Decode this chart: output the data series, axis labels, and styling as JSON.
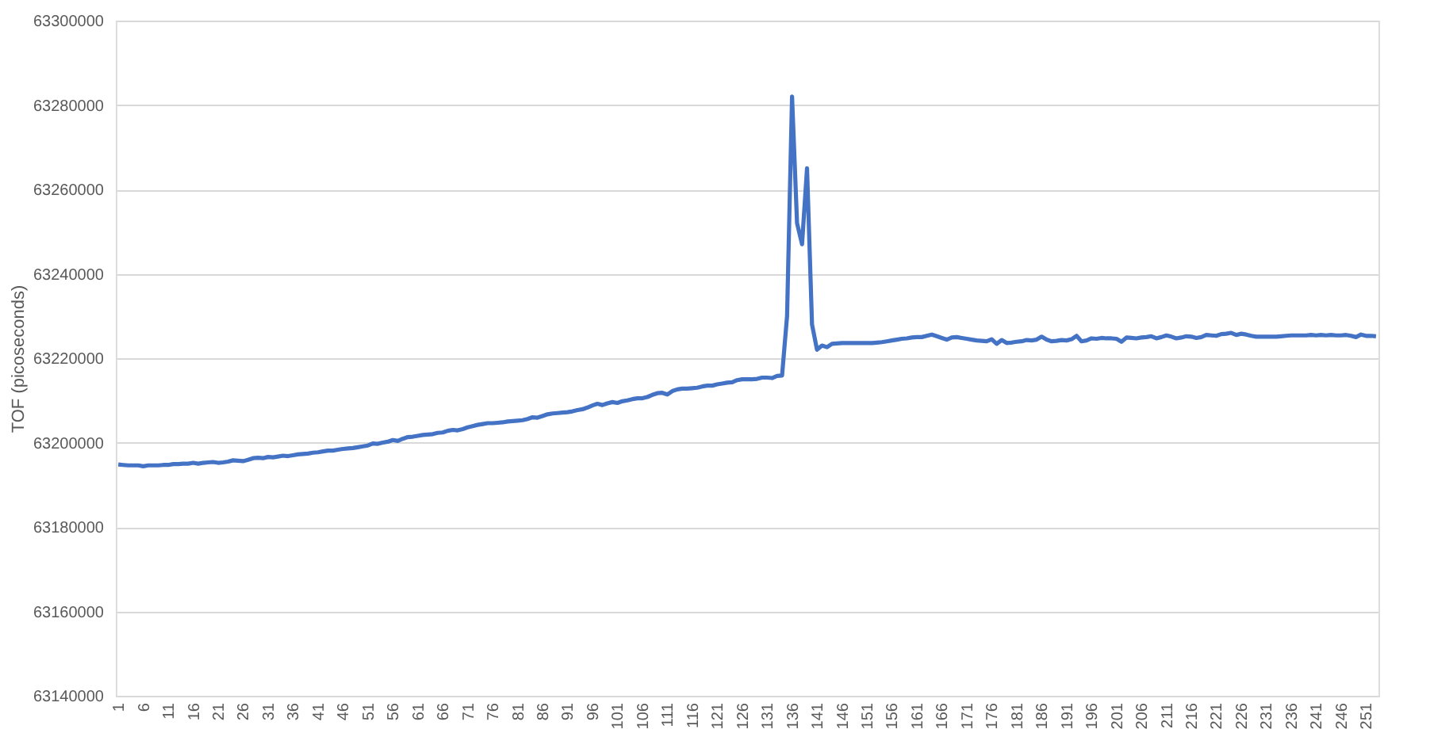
{
  "chart_data": {
    "type": "line",
    "ylabel": "TOF (picoseconds)",
    "categories": [
      "1",
      null,
      null,
      null,
      null,
      "6",
      null,
      null,
      null,
      null,
      "11",
      null,
      null,
      null,
      null,
      "16",
      null,
      null,
      null,
      null,
      "21",
      null,
      null,
      null,
      null,
      "26",
      null,
      null,
      null,
      null,
      "31",
      null,
      null,
      null,
      null,
      "36",
      null,
      null,
      null,
      null,
      "41",
      null,
      null,
      null,
      null,
      "46",
      null,
      null,
      null,
      null,
      "51",
      null,
      null,
      null,
      null,
      "56",
      null,
      null,
      null,
      null,
      "61",
      null,
      null,
      null,
      null,
      "66",
      null,
      null,
      null,
      null,
      "71",
      null,
      null,
      null,
      null,
      "76",
      null,
      null,
      null,
      null,
      "81",
      null,
      null,
      null,
      null,
      "86",
      null,
      null,
      null,
      null,
      "91",
      null,
      null,
      null,
      null,
      "96",
      null,
      null,
      null,
      null,
      "101",
      null,
      null,
      null,
      null,
      "106",
      null,
      null,
      null,
      null,
      "111",
      null,
      null,
      null,
      null,
      "116",
      null,
      null,
      null,
      null,
      "121",
      null,
      null,
      null,
      null,
      "126",
      null,
      null,
      null,
      null,
      "131",
      null,
      null,
      null,
      null,
      "136",
      null,
      null,
      null,
      null,
      "141",
      null,
      null,
      null,
      null,
      "146",
      null,
      null,
      null,
      null,
      "151",
      null,
      null,
      null,
      null,
      "156",
      null,
      null,
      null,
      null,
      "161",
      null,
      null,
      null,
      null,
      "166",
      null,
      null,
      null,
      null,
      "171",
      null,
      null,
      null,
      null,
      "176",
      null,
      null,
      null,
      null,
      "181",
      null,
      null,
      null,
      null,
      "186",
      null,
      null,
      null,
      null,
      "191",
      null,
      null,
      null,
      null,
      "196",
      null,
      null,
      null,
      null,
      "201",
      null,
      null,
      null,
      null,
      "206",
      null,
      null,
      null,
      null,
      "211",
      null,
      null,
      null,
      null,
      "216",
      null,
      null,
      null,
      null,
      "221",
      null,
      null,
      null,
      null,
      "226",
      null,
      null,
      null,
      null,
      "231",
      null,
      null,
      null,
      null,
      "236",
      null,
      null,
      null,
      null,
      "241",
      null,
      null,
      null,
      null,
      "246",
      null,
      null,
      null,
      null,
      "251",
      null,
      null
    ],
    "series": [
      {
        "color": "#4472c4",
        "values": [
          63194800,
          63194700,
          63194600,
          63194600,
          63194600,
          63194400,
          63194600,
          63194600,
          63194600,
          63194700,
          63194700,
          63194900,
          63194900,
          63195000,
          63195000,
          63195200,
          63195000,
          63195200,
          63195300,
          63195400,
          63195200,
          63195300,
          63195500,
          63195800,
          63195700,
          63195600,
          63195900,
          63196300,
          63196400,
          63196300,
          63196600,
          63196500,
          63196700,
          63196900,
          63196800,
          63197000,
          63197200,
          63197300,
          63197400,
          63197600,
          63197700,
          63197900,
          63198100,
          63198100,
          63198300,
          63198500,
          63198600,
          63198700,
          63198900,
          63199100,
          63199300,
          63199800,
          63199700,
          63200000,
          63200200,
          63200600,
          63200400,
          63200900,
          63201300,
          63201400,
          63201600,
          63201800,
          63201900,
          63202000,
          63202300,
          63202400,
          63202800,
          63203000,
          63202900,
          63203200,
          63203600,
          63203900,
          63204200,
          63204400,
          63204600,
          63204600,
          63204700,
          63204800,
          63205000,
          63205100,
          63205200,
          63205300,
          63205600,
          63206000,
          63205900,
          63206300,
          63206700,
          63206900,
          63207000,
          63207100,
          63207200,
          63207400,
          63207700,
          63207900,
          63208300,
          63208800,
          63209200,
          63208900,
          63209300,
          63209600,
          63209400,
          63209800,
          63210000,
          63210300,
          63210500,
          63210500,
          63210800,
          63211300,
          63211700,
          63211800,
          63211400,
          63212200,
          63212600,
          63212800,
          63212800,
          63212900,
          63213000,
          63213300,
          63213500,
          63213500,
          63213800,
          63214000,
          63214200,
          63214300,
          63214800,
          63215000,
          63215000,
          63215000,
          63215100,
          63215400,
          63215400,
          63215300,
          63215800,
          63215900,
          63230000,
          63282000,
          63252000,
          63247000,
          63265000,
          63228000,
          63222000,
          63223000,
          63222600,
          63223400,
          63223500,
          63223600,
          63223600,
          63223600,
          63223600,
          63223600,
          63223600,
          63223600,
          63223700,
          63223800,
          63224000,
          63224200,
          63224400,
          63224600,
          63224700,
          63224900,
          63225000,
          63225000,
          63225300,
          63225600,
          63225200,
          63224800,
          63224400,
          63224900,
          63225000,
          63224800,
          63224600,
          63224400,
          63224200,
          63224100,
          63224000,
          63224500,
          63223400,
          63224300,
          63223600,
          63223700,
          63223900,
          63224000,
          63224300,
          63224200,
          63224400,
          63225100,
          63224400,
          63224000,
          63224100,
          63224300,
          63224200,
          63224500,
          63225300,
          63224000,
          63224200,
          63224700,
          63224600,
          63224800,
          63224700,
          63224700,
          63224600,
          63223900,
          63224900,
          63224800,
          63224700,
          63224900,
          63225000,
          63225200,
          63224700,
          63225000,
          63225400,
          63225100,
          63224700,
          63224900,
          63225200,
          63225100,
          63224800,
          63225000,
          63225500,
          63225400,
          63225300,
          63225700,
          63225800,
          63226000,
          63225500,
          63225800,
          63225600,
          63225300,
          63225100,
          63225100,
          63225100,
          63225100,
          63225100,
          63225200,
          63225300,
          63225400,
          63225400,
          63225400,
          63225400,
          63225500,
          63225400,
          63225500,
          63225400,
          63225500,
          63225400,
          63225400,
          63225500,
          63225300,
          63225000,
          63225600,
          63225300,
          63225300,
          63225200
        ]
      }
    ],
    "ylim": [
      63140000,
      63300000
    ],
    "yticks": [
      63140000,
      63160000,
      63180000,
      63200000,
      63220000,
      63240000,
      63260000,
      63280000,
      63300000
    ],
    "grid": "y",
    "marker": "none",
    "line_style": "solid"
  }
}
